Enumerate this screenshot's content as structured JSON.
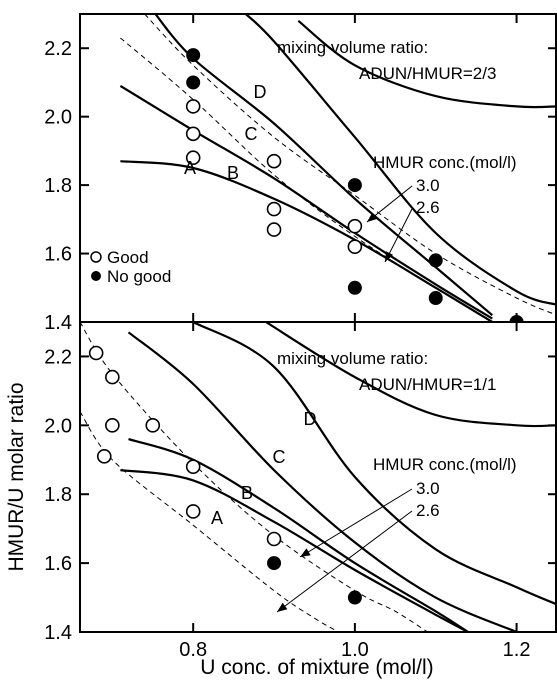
{
  "shared": {
    "xlabel": "U conc. of mixture (mol/l)",
    "ylabel": "HMUR/U molar ratio",
    "xlim": [
      0.66,
      1.25
    ],
    "ylim": [
      1.4,
      2.3
    ],
    "xticks": [
      0.8,
      1.0,
      1.2
    ],
    "xtick_labels": [
      "0.8",
      "1.0",
      "1.2"
    ],
    "yticks": [
      1.4,
      1.6,
      1.8,
      2.0,
      2.2
    ],
    "ytick_labels": [
      "1.4",
      "1.6",
      "1.8",
      "2.0",
      "2.2"
    ],
    "legend": {
      "good": "Good",
      "nogood": "No good"
    }
  },
  "chart_data": [
    {
      "type": "scatter",
      "annotation_line1": "mixing volume ratio:",
      "annotation_line2": "ADUN/HMUR=2/3",
      "hmur_label": "HMUR conc.(mol/l)",
      "conc_labels": [
        "3.0",
        "2.6"
      ],
      "curve_labels": [
        "A",
        "B",
        "C",
        "D"
      ],
      "good_points": [
        [
          0.8,
          2.03
        ],
        [
          0.8,
          1.95
        ],
        [
          0.8,
          1.88
        ],
        [
          0.9,
          1.87
        ],
        [
          0.9,
          1.73
        ],
        [
          0.9,
          1.67
        ],
        [
          1.0,
          1.68
        ],
        [
          1.0,
          1.62
        ]
      ],
      "nogood_points": [
        [
          0.8,
          2.18
        ],
        [
          0.8,
          2.1
        ],
        [
          1.0,
          1.8
        ],
        [
          1.0,
          1.5
        ],
        [
          1.1,
          1.58
        ],
        [
          1.1,
          1.47
        ],
        [
          1.2,
          1.4
        ]
      ],
      "boundary_curves": [
        {
          "label": "A",
          "points": [
            [
              0.71,
              1.87
            ],
            [
              0.8,
              1.85
            ],
            [
              0.9,
              1.76
            ],
            [
              1.0,
              1.64
            ],
            [
              1.1,
              1.5
            ],
            [
              1.17,
              1.4
            ]
          ]
        },
        {
          "label": "B",
          "points": [
            [
              0.71,
              2.09
            ],
            [
              0.8,
              1.96
            ],
            [
              0.9,
              1.82
            ],
            [
              1.0,
              1.66
            ],
            [
              1.1,
              1.51
            ],
            [
              1.17,
              1.41
            ]
          ]
        },
        {
          "label": "C",
          "points": [
            [
              0.75,
              2.31
            ],
            [
              0.8,
              2.17
            ],
            [
              0.9,
              1.98
            ],
            [
              1.0,
              1.76
            ],
            [
              1.1,
              1.56
            ],
            [
              1.17,
              1.42
            ]
          ]
        },
        {
          "label": "D",
          "points": [
            [
              0.86,
              2.31
            ],
            [
              0.9,
              2.22
            ],
            [
              1.0,
              1.94
            ],
            [
              1.1,
              1.66
            ],
            [
              1.2,
              1.49
            ],
            [
              1.25,
              1.45
            ]
          ]
        },
        {
          "label": "",
          "points": [
            [
              0.93,
              2.28
            ],
            [
              1.0,
              2.15
            ],
            [
              1.1,
              2.06
            ],
            [
              1.2,
              2.03
            ],
            [
              1.25,
              2.03
            ]
          ]
        }
      ],
      "concentration_lines": [
        {
          "label": "3.0",
          "points": [
            [
              0.74,
              2.3
            ],
            [
              0.8,
              2.15
            ],
            [
              0.9,
              1.94
            ],
            [
              1.0,
              1.77
            ],
            [
              1.1,
              1.6
            ],
            [
              1.2,
              1.47
            ],
            [
              1.25,
              1.42
            ]
          ]
        },
        {
          "label": "2.6",
          "points": [
            [
              0.71,
              2.23
            ],
            [
              0.8,
              2.05
            ],
            [
              0.9,
              1.83
            ],
            [
              1.0,
              1.65
            ],
            [
              1.1,
              1.5
            ],
            [
              1.15,
              1.43
            ]
          ]
        }
      ]
    },
    {
      "type": "scatter",
      "annotation_line1": "mixing volume ratio:",
      "annotation_line2": "ADUN/HMUR=1/1",
      "hmur_label": "HMUR conc.(mol/l)",
      "conc_labels": [
        "3.0",
        "2.6"
      ],
      "curve_labels": [
        "A",
        "B",
        "C",
        "D"
      ],
      "good_points": [
        [
          0.68,
          2.21
        ],
        [
          0.69,
          1.91
        ],
        [
          0.7,
          2.14
        ],
        [
          0.7,
          2.0
        ],
        [
          0.75,
          2.0
        ],
        [
          0.8,
          1.88
        ],
        [
          0.8,
          1.75
        ],
        [
          0.9,
          1.67
        ]
      ],
      "nogood_points": [
        [
          0.9,
          1.6
        ],
        [
          1.0,
          1.5
        ]
      ],
      "boundary_curves": [
        {
          "label": "A",
          "points": [
            [
              0.71,
              1.87
            ],
            [
              0.8,
              1.84
            ],
            [
              0.9,
              1.72
            ],
            [
              1.0,
              1.58
            ],
            [
              1.1,
              1.45
            ],
            [
              1.14,
              1.4
            ]
          ]
        },
        {
          "label": "B",
          "points": [
            [
              0.72,
              1.96
            ],
            [
              0.8,
              1.9
            ],
            [
              0.9,
              1.76
            ],
            [
              1.0,
              1.6
            ],
            [
              1.1,
              1.46
            ],
            [
              1.14,
              1.4
            ]
          ]
        },
        {
          "label": "C",
          "points": [
            [
              0.72,
              2.27
            ],
            [
              0.8,
              2.12
            ],
            [
              0.9,
              1.87
            ],
            [
              1.0,
              1.66
            ],
            [
              1.1,
              1.5
            ],
            [
              1.2,
              1.4
            ]
          ]
        },
        {
          "label": "D",
          "points": [
            [
              0.8,
              2.3
            ],
            [
              0.9,
              2.17
            ],
            [
              1.0,
              1.85
            ],
            [
              1.1,
              1.64
            ],
            [
              1.2,
              1.53
            ],
            [
              1.25,
              1.48
            ]
          ]
        },
        {
          "label": "",
          "points": [
            [
              0.89,
              2.3
            ],
            [
              1.0,
              2.14
            ],
            [
              1.1,
              2.03
            ],
            [
              1.2,
              2.0
            ],
            [
              1.25,
              2.0
            ]
          ]
        }
      ],
      "concentration_lines": [
        {
          "label": "3.0",
          "points": [
            [
              0.66,
              2.3
            ],
            [
              0.7,
              2.15
            ],
            [
              0.8,
              1.89
            ],
            [
              0.9,
              1.68
            ],
            [
              1.0,
              1.52
            ],
            [
              1.05,
              1.46
            ],
            [
              1.09,
              1.4
            ]
          ]
        },
        {
          "label": "2.6",
          "points": [
            [
              0.66,
              2.04
            ],
            [
              0.7,
              1.9
            ],
            [
              0.8,
              1.71
            ],
            [
              0.9,
              1.52
            ],
            [
              0.95,
              1.44
            ],
            [
              0.98,
              1.4
            ]
          ]
        }
      ]
    }
  ]
}
